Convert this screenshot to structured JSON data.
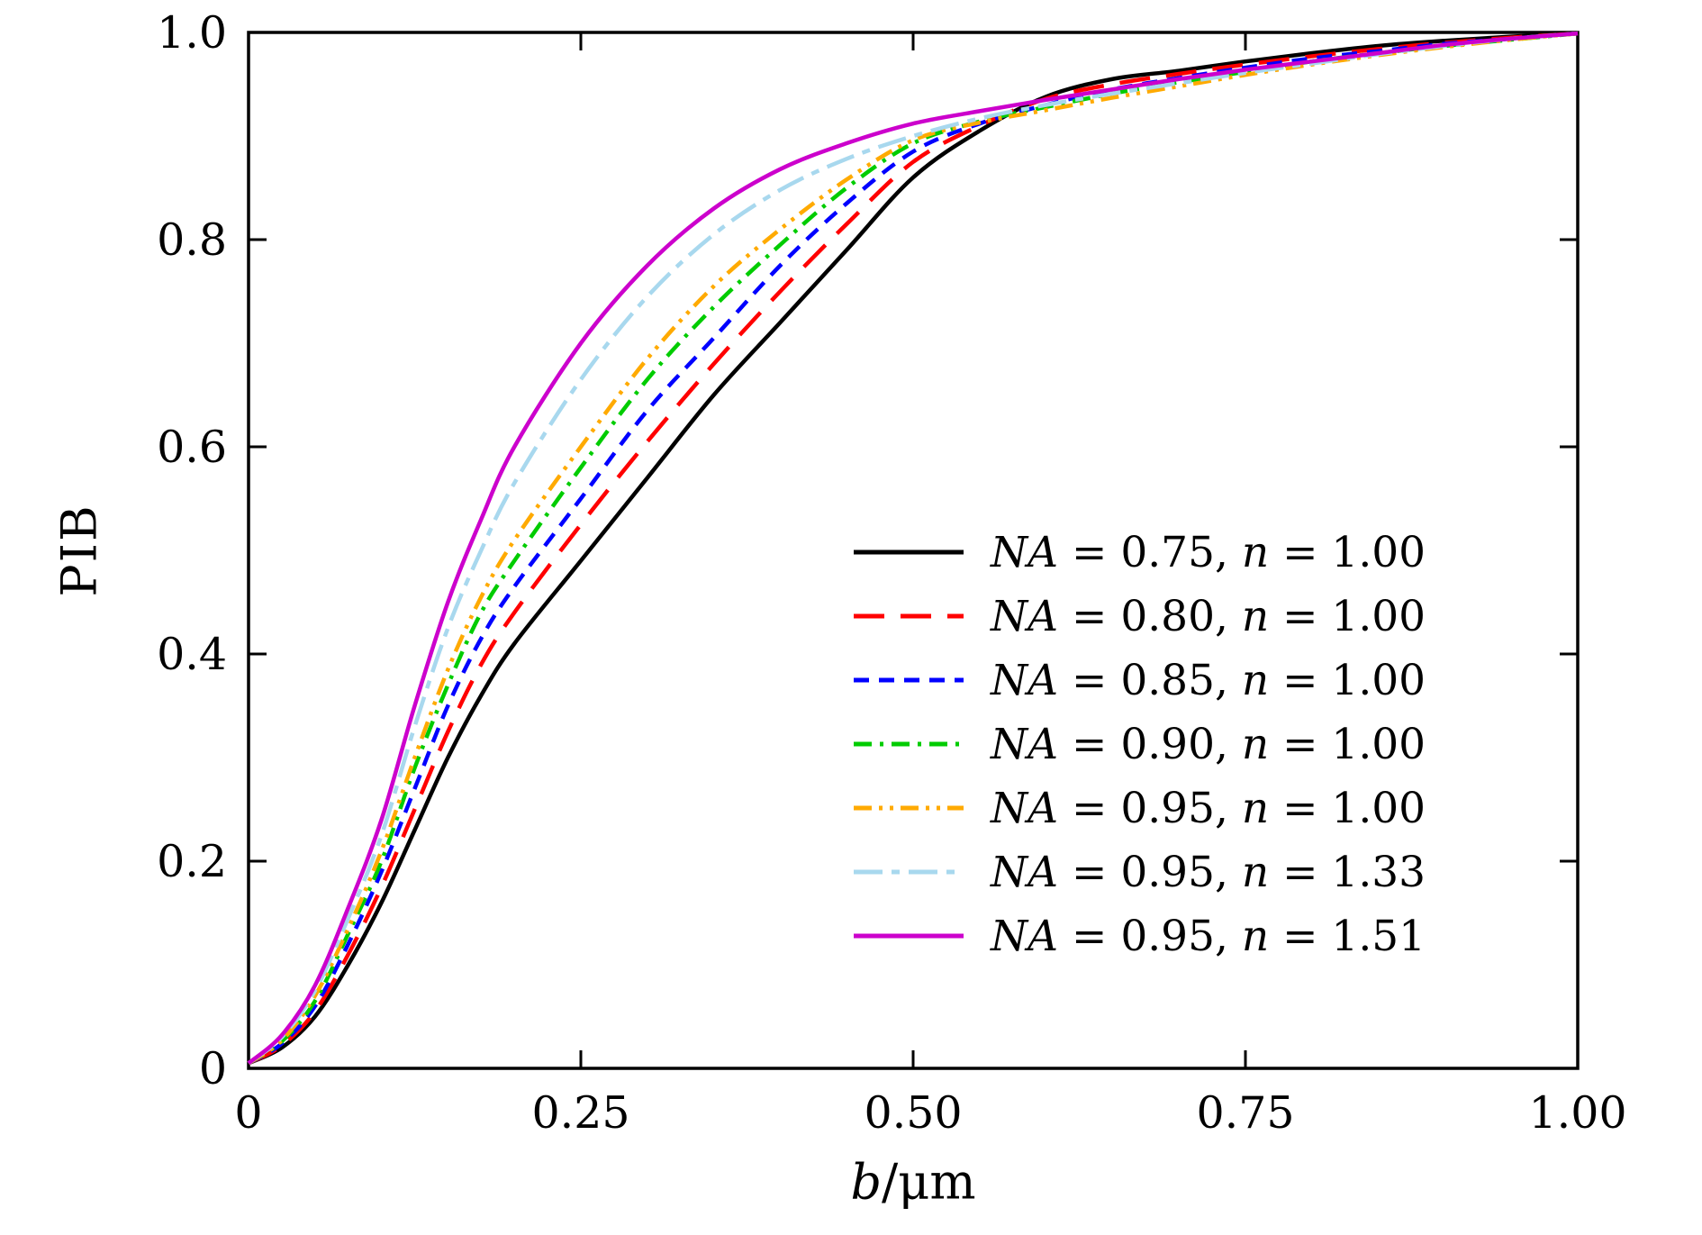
{
  "figure": {
    "background": "#ffffff",
    "frame_color": "#000000"
  },
  "chart_data": {
    "type": "line",
    "title": "",
    "xlabel": "b/μm",
    "xlabel_var": "b",
    "xlabel_rest": "/μm",
    "ylabel": "PIB",
    "xlim": [
      0,
      1.0
    ],
    "ylim": [
      0,
      1.0
    ],
    "x_ticks": {
      "values": [
        0,
        0.25,
        0.5,
        0.75,
        1.0
      ],
      "labels": [
        "0",
        "0.25",
        "0.50",
        "0.75",
        "1.00"
      ]
    },
    "y_ticks": {
      "values": [
        0,
        0.2,
        0.4,
        0.6,
        0.8,
        1.0
      ],
      "labels": [
        "0",
        "0.2",
        "0.4",
        "0.6",
        "0.8",
        "1.0"
      ]
    },
    "grid": false,
    "legend_position": "inside-right-middle",
    "x": [
      0,
      0.025,
      0.05,
      0.075,
      0.1,
      0.125,
      0.15,
      0.175,
      0.2,
      0.25,
      0.3,
      0.35,
      0.4,
      0.45,
      0.5,
      0.55,
      0.6,
      0.65,
      0.7,
      0.75,
      0.8,
      0.85,
      0.9,
      0.95,
      1.0
    ],
    "series": [
      {
        "name": "NA = 0.75, n = 1.00",
        "label": {
          "var1": "NA",
          "val1": "0.75",
          "var2": "n",
          "val2": "1.00"
        },
        "color": "#000000",
        "line_style": "solid",
        "y": [
          0.005,
          0.02,
          0.05,
          0.1,
          0.16,
          0.23,
          0.3,
          0.36,
          0.41,
          0.49,
          0.57,
          0.65,
          0.72,
          0.79,
          0.86,
          0.905,
          0.938,
          0.955,
          0.963,
          0.972,
          0.98,
          0.987,
          0.992,
          0.996,
          0.999
        ]
      },
      {
        "name": "NA = 0.80, n = 1.00",
        "label": {
          "var1": "NA",
          "val1": "0.80",
          "var2": "n",
          "val2": "1.00"
        },
        "color": "#ff0000",
        "line_style": "long-dash",
        "y": [
          0.005,
          0.022,
          0.055,
          0.11,
          0.175,
          0.25,
          0.325,
          0.39,
          0.44,
          0.525,
          0.605,
          0.68,
          0.75,
          0.815,
          0.875,
          0.91,
          0.936,
          0.95,
          0.96,
          0.969,
          0.977,
          0.984,
          0.99,
          0.995,
          0.999
        ]
      },
      {
        "name": "NA = 0.85, n = 1.00",
        "label": {
          "var1": "NA",
          "val1": "0.85",
          "var2": "n",
          "val2": "1.00"
        },
        "color": "#0000ff",
        "line_style": "dash",
        "y": [
          0.005,
          0.024,
          0.06,
          0.12,
          0.19,
          0.27,
          0.35,
          0.415,
          0.465,
          0.55,
          0.635,
          0.705,
          0.775,
          0.835,
          0.885,
          0.912,
          0.93,
          0.945,
          0.956,
          0.966,
          0.975,
          0.982,
          0.989,
          0.994,
          0.999
        ]
      },
      {
        "name": "NA = 0.90, n = 1.00",
        "label": {
          "var1": "NA",
          "val1": "0.90",
          "var2": "n",
          "val2": "1.00"
        },
        "color": "#00cc00",
        "line_style": "dash-dot",
        "y": [
          0.005,
          0.026,
          0.065,
          0.13,
          0.2,
          0.29,
          0.37,
          0.44,
          0.49,
          0.58,
          0.665,
          0.735,
          0.795,
          0.85,
          0.893,
          0.914,
          0.928,
          0.941,
          0.952,
          0.962,
          0.972,
          0.98,
          0.987,
          0.993,
          0.999
        ]
      },
      {
        "name": "NA = 0.95, n = 1.00",
        "label": {
          "var1": "NA",
          "val1": "0.95",
          "var2": "n",
          "val2": "1.00"
        },
        "color": "#ffaa00",
        "line_style": "dash-dot-dot",
        "y": [
          0.005,
          0.027,
          0.07,
          0.135,
          0.21,
          0.3,
          0.385,
          0.455,
          0.51,
          0.6,
          0.685,
          0.755,
          0.81,
          0.858,
          0.896,
          0.913,
          0.925,
          0.937,
          0.948,
          0.959,
          0.969,
          0.978,
          0.986,
          0.993,
          0.999
        ]
      },
      {
        "name": "NA = 0.95, n = 1.33",
        "label": {
          "var1": "NA",
          "val1": "0.95",
          "var2": "n",
          "val2": "1.33"
        },
        "color": "#a8d8ee",
        "line_style": "long-dash-dot",
        "y": [
          0.005,
          0.03,
          0.075,
          0.145,
          0.225,
          0.33,
          0.425,
          0.5,
          0.565,
          0.665,
          0.745,
          0.805,
          0.848,
          0.878,
          0.9,
          0.917,
          0.93,
          0.941,
          0.951,
          0.961,
          0.97,
          0.979,
          0.987,
          0.994,
          0.999
        ]
      },
      {
        "name": "NA = 0.95, n = 1.51",
        "label": {
          "var1": "NA",
          "val1": "0.95",
          "var2": "n",
          "val2": "1.51"
        },
        "color": "#cc00cc",
        "line_style": "solid",
        "y": [
          0.005,
          0.032,
          0.08,
          0.155,
          0.24,
          0.35,
          0.45,
          0.53,
          0.6,
          0.7,
          0.775,
          0.83,
          0.868,
          0.893,
          0.912,
          0.924,
          0.935,
          0.945,
          0.955,
          0.964,
          0.972,
          0.98,
          0.988,
          0.994,
          0.999
        ]
      }
    ]
  }
}
